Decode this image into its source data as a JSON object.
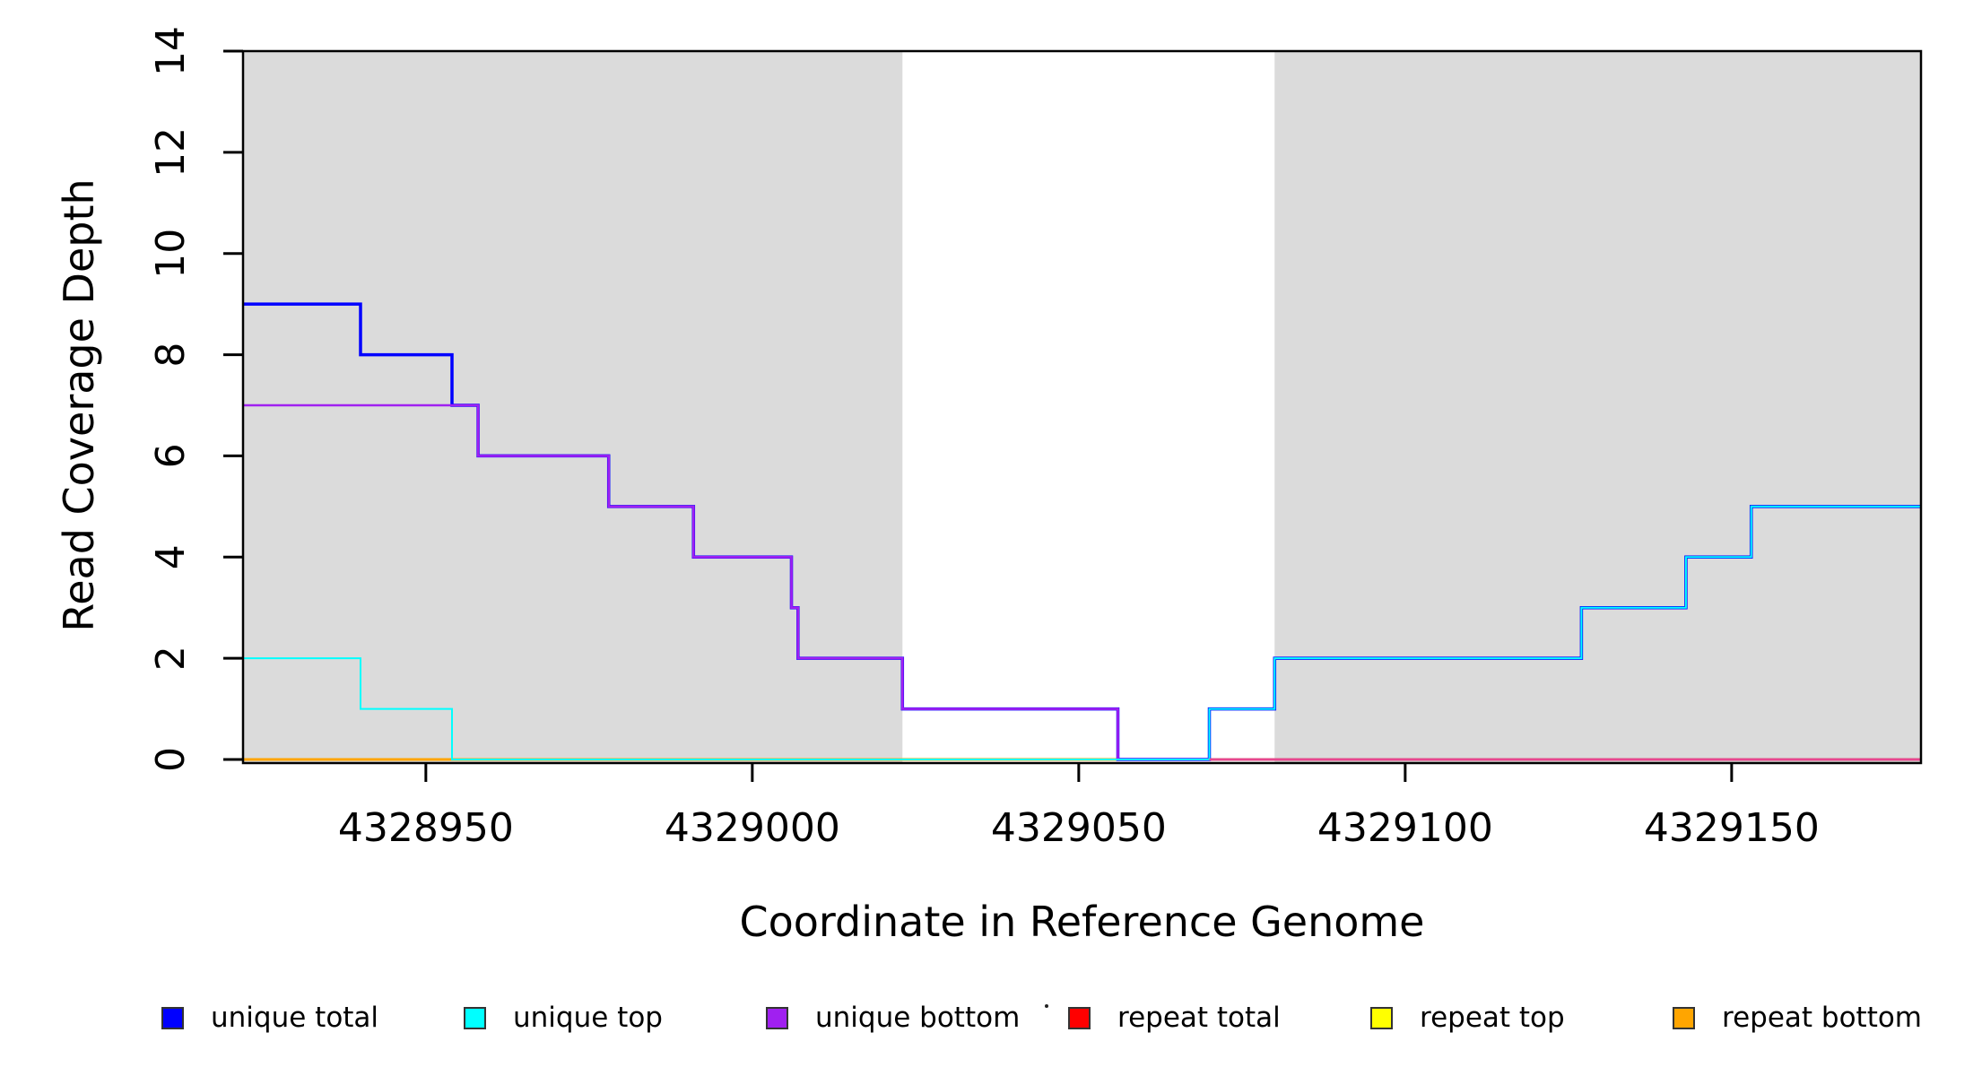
{
  "chart_data": {
    "type": "line",
    "subtype": "step-coverage-plot",
    "title": "",
    "xlabel": "Coordinate in Reference Genome",
    "ylabel": "Read Coverage Depth",
    "xlim": [
      4328922,
      4329179
    ],
    "ylim": [
      0,
      14
    ],
    "grid": false,
    "legend_position": "bottom",
    "xticks": [
      {
        "v": 4328950,
        "label": "4328950"
      },
      {
        "v": 4329000,
        "label": "4329000"
      },
      {
        "v": 4329050,
        "label": "4329050"
      },
      {
        "v": 4329100,
        "label": "4329100"
      },
      {
        "v": 4329150,
        "label": "4329150"
      }
    ],
    "yticks": [
      {
        "v": 0,
        "label": "0"
      },
      {
        "v": 2,
        "label": "2"
      },
      {
        "v": 4,
        "label": "4"
      },
      {
        "v": 6,
        "label": "6"
      },
      {
        "v": 8,
        "label": "8"
      },
      {
        "v": 10,
        "label": "10"
      },
      {
        "v": 12,
        "label": "12"
      },
      {
        "v": 14,
        "label": "14"
      }
    ],
    "shaded_color": "#DBDBDB",
    "shaded_regions": [
      {
        "from": 4328922,
        "to": 4329023
      },
      {
        "from": 4329080,
        "to": 4329179
      }
    ],
    "series": [
      {
        "name": "unique total",
        "color": "#0000FF",
        "width": 3.5,
        "points": [
          [
            4328922,
            9
          ],
          [
            4328940,
            8
          ],
          [
            4328954,
            7
          ],
          [
            4328958,
            6
          ],
          [
            4328978,
            5
          ],
          [
            4328991,
            4
          ],
          [
            4329006,
            3
          ],
          [
            4329007,
            2
          ],
          [
            4329023,
            1
          ],
          [
            4329056,
            0
          ],
          [
            4329070,
            1
          ],
          [
            4329080,
            2
          ],
          [
            4329127,
            3
          ],
          [
            4329143,
            4
          ],
          [
            4329153,
            5
          ],
          [
            4329179,
            5
          ]
        ]
      },
      {
        "name": "unique top",
        "color": "#00FFFF",
        "width": 2,
        "points": [
          [
            4328922,
            2
          ],
          [
            4328940,
            1
          ],
          [
            4328954,
            0
          ],
          [
            4329070,
            1
          ],
          [
            4329080,
            2
          ],
          [
            4329127,
            3
          ],
          [
            4329143,
            4
          ],
          [
            4329153,
            5
          ],
          [
            4329179,
            5
          ]
        ]
      },
      {
        "name": "unique bottom",
        "color": "#A020F0",
        "width": 2.6,
        "points": [
          [
            4328922,
            7
          ],
          [
            4328958,
            6
          ],
          [
            4328978,
            5
          ],
          [
            4328991,
            4
          ],
          [
            4329006,
            3
          ],
          [
            4329007,
            2
          ],
          [
            4329023,
            1
          ],
          [
            4329056,
            0
          ],
          [
            4329179,
            0
          ]
        ]
      },
      {
        "name": "repeat total",
        "color": "#FF0000",
        "width": 2,
        "points": [
          [
            4328922,
            0
          ],
          [
            4329179,
            0
          ]
        ]
      },
      {
        "name": "repeat top",
        "color": "#FFFF00",
        "width": 2,
        "points": [
          [
            4328922,
            0
          ],
          [
            4329179,
            0
          ]
        ]
      },
      {
        "name": "repeat bottom",
        "color": "#FFA500",
        "width": 3,
        "points": [
          [
            4328922,
            0
          ],
          [
            4329179,
            0
          ]
        ]
      }
    ],
    "draw_order": [
      "repeat top",
      "repeat total",
      "repeat bottom",
      "unique total",
      "unique bottom",
      "unique top"
    ],
    "baseline_blend": {
      "color": "#E8468F",
      "from": 4329070,
      "to": 4329179,
      "width": 2.4,
      "note": "repeat lines visible over purple along y=0 at right side"
    }
  },
  "legend": {
    "swatch_border_color": "#333333",
    "items": [
      {
        "label": "unique total",
        "color": "#0000FF"
      },
      {
        "label": "unique top",
        "color": "#00FFFF"
      },
      {
        "label": "unique bottom",
        "color": "#A020F0"
      },
      {
        "label": "repeat total",
        "color": "#FF0000"
      },
      {
        "label": "repeat top",
        "color": "#FFFF00"
      },
      {
        "label": "repeat bottom",
        "color": "#FFA500"
      }
    ]
  },
  "artifacts": {
    "stray_dot": "·"
  }
}
